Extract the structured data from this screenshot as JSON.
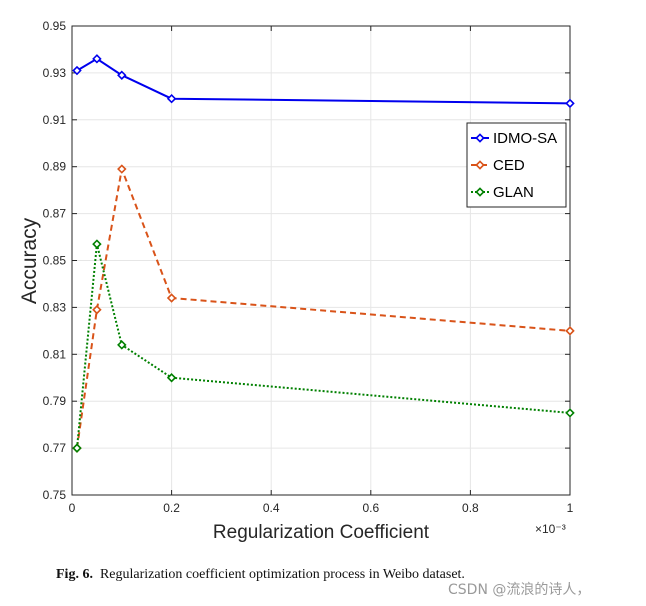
{
  "chart_data": {
    "type": "line",
    "xlabel": "Regularization Coefficient",
    "ylabel": "Accuracy",
    "x_exponent_label": "×10⁻³",
    "xlim": [
      0,
      1
    ],
    "ylim": [
      0.75,
      0.95
    ],
    "xticks": [
      0,
      0.2,
      0.4,
      0.6,
      0.8,
      1
    ],
    "xtick_labels": [
      "0",
      "0.2",
      "0.4",
      "0.6",
      "0.8",
      "1"
    ],
    "yticks": [
      0.75,
      0.77,
      0.79,
      0.81,
      0.83,
      0.85,
      0.87,
      0.89,
      0.91,
      0.93,
      0.95
    ],
    "ytick_labels": [
      "0.75",
      "0.77",
      "0.79",
      "0.81",
      "0.83",
      "0.85",
      "0.87",
      "0.89",
      "0.91",
      "0.93",
      "0.95"
    ],
    "grid": true,
    "legend_position": "upper-right",
    "series": [
      {
        "name": "IDMO-SA",
        "color": "#0000ee",
        "style": "solid",
        "x": [
          0.01,
          0.05,
          0.1,
          0.2,
          1.0
        ],
        "values": [
          0.931,
          0.936,
          0.929,
          0.919,
          0.917
        ]
      },
      {
        "name": "CED",
        "color": "#d95319",
        "style": "dashed",
        "x": [
          0.01,
          0.05,
          0.1,
          0.2,
          1.0
        ],
        "values": [
          0.77,
          0.829,
          0.889,
          0.834,
          0.82
        ]
      },
      {
        "name": "GLAN",
        "color": "#008000",
        "style": "dotted",
        "x": [
          0.01,
          0.05,
          0.1,
          0.2,
          1.0
        ],
        "values": [
          0.77,
          0.857,
          0.814,
          0.8,
          0.785
        ]
      }
    ]
  },
  "caption": {
    "figure_label": "Fig. 6.",
    "text": "Regularization coefficient optimization process in Weibo dataset."
  },
  "watermark": "CSDN @流浪的诗人，"
}
